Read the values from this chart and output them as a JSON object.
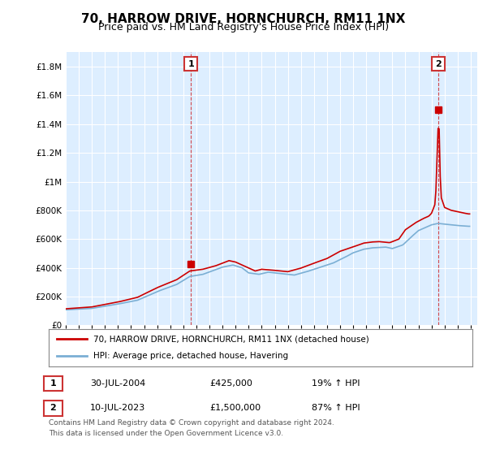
{
  "title": "70, HARROW DRIVE, HORNCHURCH, RM11 1NX",
  "subtitle": "Price paid vs. HM Land Registry's House Price Index (HPI)",
  "ylabel_ticks": [
    "£0",
    "£200K",
    "£400K",
    "£600K",
    "£800K",
    "£1M",
    "£1.2M",
    "£1.4M",
    "£1.6M",
    "£1.8M"
  ],
  "ytick_values": [
    0,
    200000,
    400000,
    600000,
    800000,
    1000000,
    1200000,
    1400000,
    1600000,
    1800000
  ],
  "ylim": [
    0,
    1900000
  ],
  "xlim_start": 1995.0,
  "xlim_end": 2026.5,
  "title_fontsize": 11,
  "subtitle_fontsize": 9,
  "hpi_color": "#7BAFD4",
  "price_color": "#CC0000",
  "ann1_x": 2004.58,
  "ann1_y": 425000,
  "ann1_label": "1",
  "ann2_x": 2023.53,
  "ann2_y": 1500000,
  "ann2_label": "2",
  "legend_label1": "70, HARROW DRIVE, HORNCHURCH, RM11 1NX (detached house)",
  "legend_label2": "HPI: Average price, detached house, Havering",
  "table_row1_num": "1",
  "table_row1_date": "30-JUL-2004",
  "table_row1_price": "£425,000",
  "table_row1_hpi": "19% ↑ HPI",
  "table_row2_num": "2",
  "table_row2_date": "10-JUL-2023",
  "table_row2_price": "£1,500,000",
  "table_row2_hpi": "87% ↑ HPI",
  "footer_line1": "Contains HM Land Registry data © Crown copyright and database right 2024.",
  "footer_line2": "This data is licensed under the Open Government Licence v3.0.",
  "bg_color": "#ffffff",
  "chart_bg": "#ddeeff",
  "grid_color": "#c8d8e8"
}
